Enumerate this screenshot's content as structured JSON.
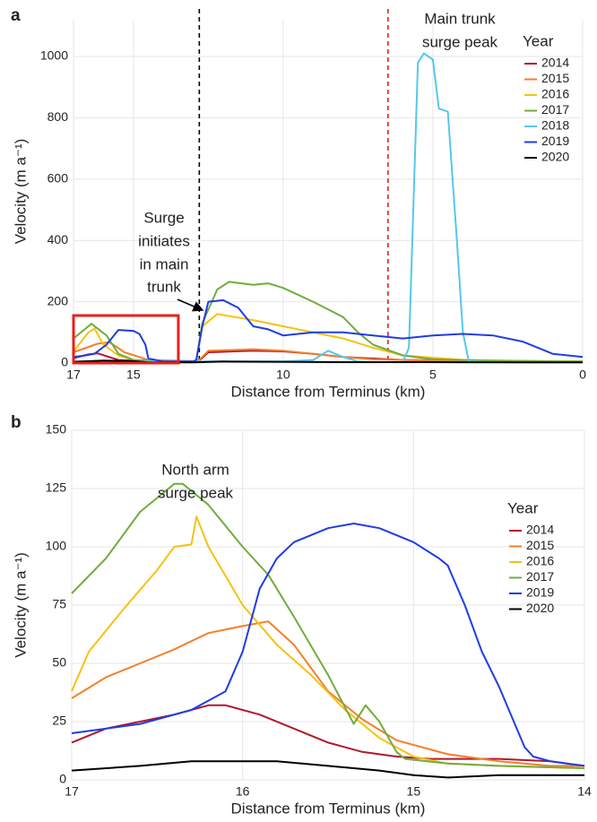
{
  "chart_data": [
    {
      "type": "line",
      "panel_label": "a",
      "xlabel": "Distance from Terminus (km)",
      "ylabel": "Velocity (m a⁻¹)",
      "xlim": [
        17,
        0
      ],
      "xticks": [
        17,
        15,
        10,
        5,
        0
      ],
      "ylim": [
        0,
        1120
      ],
      "yticks": [
        0,
        200,
        400,
        600,
        800,
        1000
      ],
      "grid": true,
      "legend_title": "Year",
      "legend": "right",
      "annotations": [
        {
          "lines": [
            "Surge",
            "initiates",
            "in main",
            "trunk"
          ]
        },
        {
          "lines": [
            "Main trunk",
            "surge peak"
          ]
        }
      ],
      "vlines": [
        {
          "x": 12.8,
          "color": "#000000"
        },
        {
          "x": 6.5,
          "color": "#e8201a"
        }
      ],
      "highlight": {
        "xlim": [
          17,
          13.5
        ],
        "ylim": [
          0,
          155
        ],
        "color": "#e8201a"
      },
      "series": [
        {
          "name": "2014",
          "color": "#b2182b",
          "x": [
            17,
            16.5,
            16.2,
            15.5,
            15,
            14,
            13,
            12.8,
            12.5,
            11,
            10,
            9,
            8,
            6,
            4,
            2,
            0
          ],
          "values": [
            16,
            28,
            32,
            10,
            8,
            6,
            5,
            8,
            35,
            40,
            38,
            30,
            20,
            10,
            8,
            6,
            5
          ]
        },
        {
          "name": "2015",
          "color": "#f47f2a",
          "x": [
            17,
            16.2,
            15.8,
            15.3,
            14.5,
            13,
            12.8,
            12.5,
            11,
            10,
            9,
            8,
            7,
            5,
            3,
            0
          ],
          "values": [
            35,
            63,
            68,
            35,
            10,
            6,
            10,
            40,
            45,
            40,
            30,
            20,
            12,
            8,
            6,
            5
          ]
        },
        {
          "name": "2016",
          "color": "#f5c211",
          "x": [
            17,
            16.5,
            16.3,
            16,
            15.5,
            15,
            14,
            13,
            12.9,
            12.7,
            12.2,
            11,
            10,
            9,
            8,
            7,
            6,
            4,
            2,
            0
          ],
          "values": [
            38,
            100,
            113,
            60,
            25,
            10,
            6,
            5,
            10,
            120,
            160,
            140,
            120,
            100,
            80,
            50,
            25,
            10,
            6,
            5
          ]
        },
        {
          "name": "2017",
          "color": "#72ac3f",
          "x": [
            17,
            16.4,
            15.9,
            15.5,
            15,
            14,
            13,
            12.9,
            12.7,
            12.2,
            11.8,
            11,
            10.5,
            10,
            9,
            8,
            7.5,
            7,
            6,
            5,
            3,
            0
          ],
          "values": [
            80,
            128,
            90,
            30,
            10,
            6,
            5,
            10,
            130,
            240,
            265,
            255,
            260,
            245,
            200,
            150,
            100,
            60,
            25,
            12,
            8,
            5
          ]
        },
        {
          "name": "2018",
          "color": "#55c7ef",
          "x": [
            17,
            12,
            10,
            9,
            8.5,
            8,
            7.5,
            7,
            6,
            5.8,
            5.5,
            5.3,
            5,
            4.8,
            4.5,
            4.2,
            4,
            3.8,
            3,
            0
          ],
          "values": [
            5,
            5,
            5,
            10,
            40,
            20,
            5,
            3,
            3,
            50,
            980,
            1010,
            990,
            830,
            820,
            400,
            100,
            5,
            3,
            2
          ]
        },
        {
          "name": "2019",
          "color": "#1f3ce6",
          "x": [
            17,
            16.6,
            16.3,
            15.9,
            15.5,
            15,
            14.8,
            14.6,
            14.5,
            14,
            13,
            12.9,
            12.7,
            12.5,
            12,
            11.5,
            11,
            10.5,
            10,
            9,
            8,
            7,
            6,
            5,
            4,
            3,
            2,
            1,
            0
          ],
          "values": [
            20,
            25,
            30,
            60,
            108,
            105,
            95,
            60,
            15,
            5,
            5,
            10,
            120,
            200,
            205,
            180,
            120,
            110,
            90,
            100,
            100,
            90,
            80,
            90,
            95,
            90,
            70,
            30,
            20
          ]
        },
        {
          "name": "2020",
          "color": "#000000",
          "x": [
            17,
            16,
            15,
            14.5,
            13,
            12,
            10,
            8,
            5,
            2,
            0
          ],
          "values": [
            4,
            8,
            6,
            2,
            2,
            5,
            4,
            3,
            3,
            2,
            2
          ]
        }
      ]
    },
    {
      "type": "line",
      "panel_label": "b",
      "xlabel": "Distance from Terminus (km)",
      "ylabel": "Velocity (m a⁻¹)",
      "xlim": [
        17,
        14
      ],
      "xticks": [
        17,
        16,
        15,
        14
      ],
      "ylim": [
        0,
        150
      ],
      "yticks": [
        0,
        25,
        50,
        75,
        100,
        125,
        150
      ],
      "grid": true,
      "legend_title": "Year",
      "legend": "right",
      "annotations": [
        {
          "lines": [
            "North arm",
            "surge peak"
          ]
        }
      ],
      "series": [
        {
          "name": "2014",
          "color": "#b2182b",
          "x": [
            17,
            16.8,
            16.6,
            16.4,
            16.2,
            16.1,
            15.9,
            15.7,
            15.5,
            15.3,
            15.1,
            14.9,
            14.5,
            14.2,
            14
          ],
          "values": [
            16,
            22,
            25,
            28,
            32,
            32,
            28,
            22,
            16,
            12,
            10,
            9,
            9,
            8,
            6
          ]
        },
        {
          "name": "2015",
          "color": "#f47f2a",
          "x": [
            17,
            16.8,
            16.6,
            16.4,
            16.2,
            16,
            15.85,
            15.7,
            15.5,
            15.3,
            15.1,
            14.8,
            14.5,
            14.2,
            14
          ],
          "values": [
            35,
            44,
            50,
            56,
            63,
            66,
            68,
            58,
            38,
            26,
            17,
            11,
            8,
            6,
            6
          ]
        },
        {
          "name": "2016",
          "color": "#f5c211",
          "x": [
            17,
            16.9,
            16.7,
            16.5,
            16.4,
            16.3,
            16.27,
            16.2,
            16,
            15.8,
            15.6,
            15.4,
            15.2,
            15,
            14.8,
            14.5,
            14
          ],
          "values": [
            38,
            55,
            73,
            90,
            100,
            101,
            113,
            100,
            75,
            58,
            45,
            30,
            18,
            10,
            7,
            6,
            5
          ]
        },
        {
          "name": "2017",
          "color": "#72ac3f",
          "x": [
            17,
            16.8,
            16.6,
            16.4,
            16.35,
            16.2,
            16,
            15.85,
            15.7,
            15.5,
            15.35,
            15.28,
            15.2,
            15.1,
            15.05,
            14.8,
            14.5,
            14
          ],
          "values": [
            80,
            95,
            115,
            127,
            127,
            118,
            100,
            88,
            70,
            45,
            24,
            32,
            25,
            12,
            9,
            7,
            6,
            5
          ]
        },
        {
          "name": "2019",
          "color": "#1f3ce6",
          "x": [
            17,
            16.6,
            16.3,
            16.1,
            16,
            15.9,
            15.8,
            15.7,
            15.5,
            15.35,
            15.2,
            15,
            14.85,
            14.8,
            14.7,
            14.6,
            14.5,
            14.35,
            14.3,
            14.2,
            14
          ],
          "values": [
            20,
            24,
            30,
            38,
            55,
            82,
            95,
            102,
            108,
            110,
            108,
            102,
            95,
            92,
            75,
            55,
            40,
            14,
            10,
            8,
            6
          ]
        },
        {
          "name": "2020",
          "color": "#000000",
          "x": [
            17,
            16.6,
            16.3,
            16,
            15.8,
            15.5,
            15.2,
            15,
            14.8,
            14.5,
            14.2,
            14
          ],
          "values": [
            4,
            6,
            8,
            8,
            8,
            6,
            4,
            2,
            1,
            2,
            2,
            2
          ]
        }
      ]
    }
  ]
}
